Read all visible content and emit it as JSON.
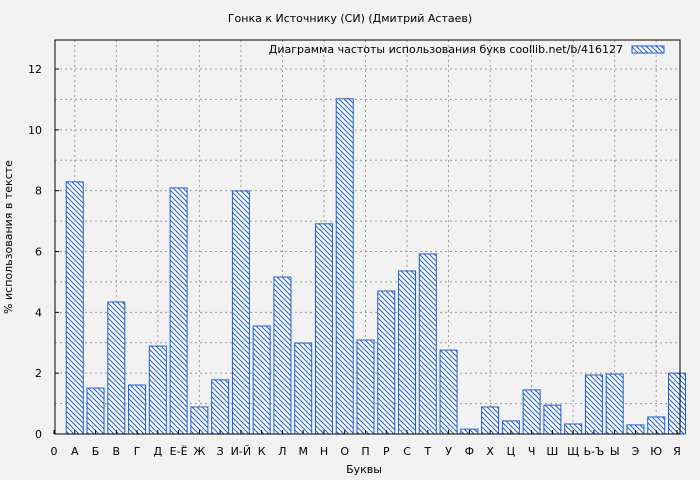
{
  "chart_data": {
    "type": "bar",
    "title": "Гонка к Источнику (СИ) (Дмитрий Астаев)",
    "xlabel": "Буквы",
    "ylabel": "% использования в тексте",
    "legend": {
      "label": "Диаграмма частоты использования букв  coollib.net/b/416127",
      "placement": "top-right"
    },
    "x_tick_labels": [
      "0",
      "А",
      "Б",
      "В",
      "Г",
      "Д",
      "Е-Ё",
      "Ж",
      "З",
      "И-Й",
      "К",
      "Л",
      "М",
      "Н",
      "О",
      "П",
      "Р",
      "С",
      "Т",
      "У",
      "Ф",
      "Х",
      "Ц",
      "Ч",
      "Ш",
      "Щ",
      "Ь-Ъ",
      "Ы",
      "Э",
      "Ю",
      "Я"
    ],
    "categories": [
      "А",
      "Б",
      "В",
      "Г",
      "Д",
      "Е-Ё",
      "Ж",
      "З",
      "И-Й",
      "К",
      "Л",
      "М",
      "Н",
      "О",
      "П",
      "Р",
      "С",
      "Т",
      "У",
      "Ф",
      "Х",
      "Ц",
      "Ч",
      "Ш",
      "Щ",
      "Ь-Ъ",
      "Ы",
      "Э",
      "Ю",
      "Я"
    ],
    "values": [
      8.29,
      1.51,
      4.34,
      1.61,
      2.89,
      8.09,
      0.89,
      1.78,
      7.99,
      3.55,
      5.16,
      2.99,
      6.91,
      11.02,
      3.09,
      4.7,
      5.36,
      5.92,
      2.76,
      0.16,
      0.89,
      0.43,
      1.45,
      0.95,
      0.33,
      1.94,
      1.97,
      0.3,
      0.56,
      2.0
    ],
    "y_ticks": [
      "0",
      "2",
      "4",
      "6",
      "8",
      "10",
      "12"
    ],
    "ylim": [
      0,
      13
    ],
    "xlim": [
      0,
      30
    ],
    "grid": true,
    "colors": {
      "bar": "#1f5fc8",
      "background": "#f2f2f2"
    }
  }
}
